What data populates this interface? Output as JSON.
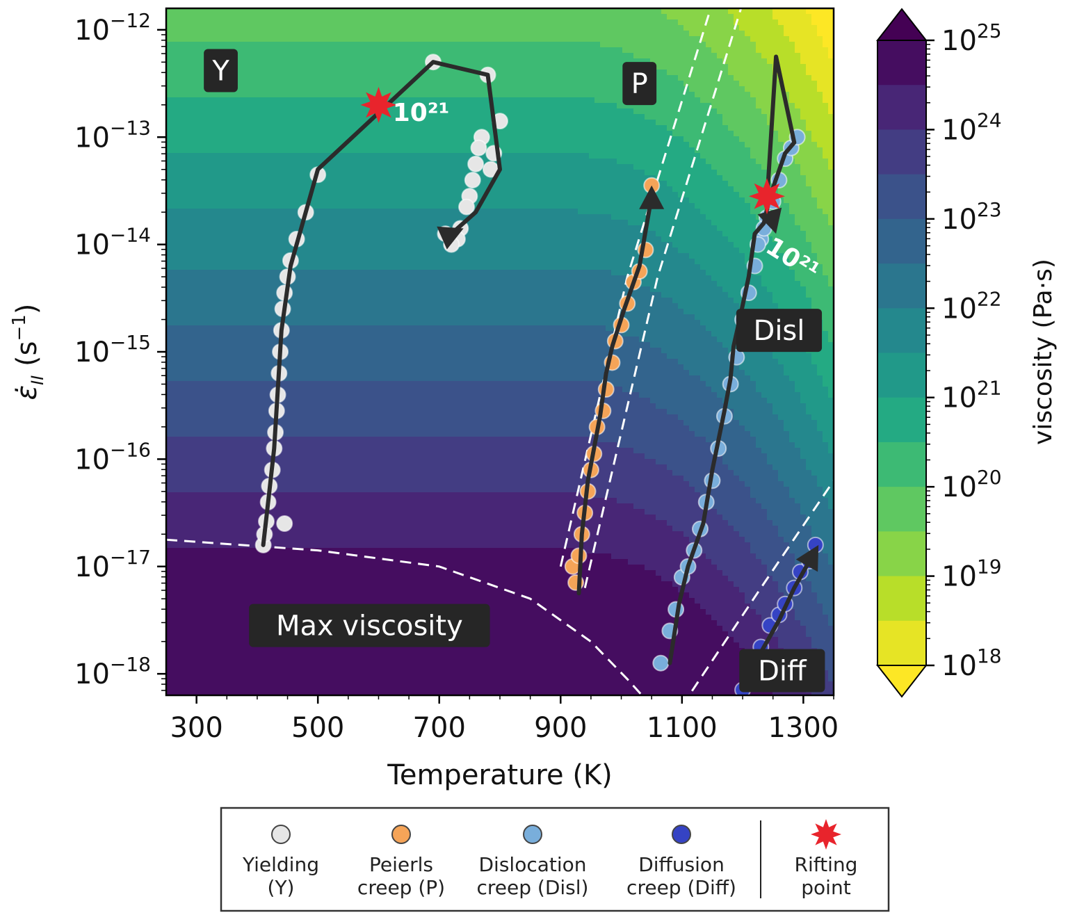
{
  "chart_data": {
    "type": "scatter",
    "xlabel": "Temperature (K)",
    "ylabel": "ε̇",
    "ylabel_subscript": "II",
    "ylabel_unit_open": " (s",
    "ylabel_unit_exp": "−1",
    "ylabel_unit_close": ")",
    "xlim": [
      250,
      1350
    ],
    "ylim_log10": [
      -18.2,
      -11.8
    ],
    "y_scale": "log",
    "x_ticks": [
      300,
      500,
      700,
      900,
      1100,
      1300
    ],
    "x_tick_labels": [
      "300",
      "500",
      "700",
      "900",
      "1100",
      "1300"
    ],
    "y_ticks_log10": [
      -18,
      -17,
      -16,
      -15,
      -14,
      -13,
      -12
    ],
    "y_tick_labels": [
      {
        "base": "10",
        "exp": "−18"
      },
      {
        "base": "10",
        "exp": "−17"
      },
      {
        "base": "10",
        "exp": "−16"
      },
      {
        "base": "10",
        "exp": "−15"
      },
      {
        "base": "10",
        "exp": "−14"
      },
      {
        "base": "10",
        "exp": "−13"
      },
      {
        "base": "10",
        "exp": "−12"
      }
    ],
    "colorbar": {
      "label": "viscosity (Pa·s)",
      "scale": "log",
      "range_log10": [
        18,
        25
      ],
      "colormap": "viridis_r",
      "ticks": [
        {
          "base": "10",
          "exp": "25"
        },
        {
          "base": "10",
          "exp": "24"
        },
        {
          "base": "10",
          "exp": "23"
        },
        {
          "base": "10",
          "exp": "22"
        },
        {
          "base": "10",
          "exp": "21"
        },
        {
          "base": "10",
          "exp": "20"
        },
        {
          "base": "10",
          "exp": "19"
        },
        {
          "base": "10",
          "exp": "18"
        }
      ],
      "extend": "both"
    },
    "region_labels": [
      {
        "text": "Y",
        "x": 340,
        "y_log10": -12.38
      },
      {
        "text": "P",
        "x": 1030,
        "y_log10": -12.5
      },
      {
        "text": "Disl",
        "x": 1260,
        "y_log10": -14.8
      },
      {
        "text": "Diff",
        "x": 1265,
        "y_log10": -17.97
      },
      {
        "text": "Max viscosity",
        "x": 585,
        "y_log10": -17.55
      }
    ],
    "contour_labels": [
      {
        "text": "10²¹",
        "x": 670,
        "y_log10": -12.85
      },
      {
        "text": "10²¹",
        "x": 1275,
        "y_log10": -14.2
      }
    ],
    "series": [
      {
        "name": "Yielding (Y)",
        "color": "#e6e6e6",
        "points": [
          [
            410,
            -16.8
          ],
          [
            412,
            -16.7
          ],
          [
            415,
            -16.58
          ],
          [
            418,
            -16.4
          ],
          [
            420,
            -16.25
          ],
          [
            425,
            -16.1
          ],
          [
            428,
            -15.9
          ],
          [
            430,
            -15.75
          ],
          [
            432,
            -15.55
          ],
          [
            434,
            -15.4
          ],
          [
            436,
            -15.2
          ],
          [
            438,
            -15.0
          ],
          [
            440,
            -14.8
          ],
          [
            442,
            -14.6
          ],
          [
            445,
            -14.45
          ],
          [
            450,
            -14.3
          ],
          [
            455,
            -14.15
          ],
          [
            465,
            -13.95
          ],
          [
            480,
            -13.7
          ],
          [
            500,
            -13.35
          ],
          [
            690,
            -12.3
          ],
          [
            780,
            -12.42
          ],
          [
            800,
            -12.85
          ],
          [
            790,
            -13.15
          ],
          [
            785,
            -13.3
          ],
          [
            770,
            -13.0
          ],
          [
            765,
            -13.1
          ],
          [
            760,
            -13.25
          ],
          [
            755,
            -13.4
          ],
          [
            750,
            -13.55
          ],
          [
            745,
            -13.65
          ],
          [
            735,
            -13.85
          ],
          [
            730,
            -13.95
          ],
          [
            720,
            -14.0
          ],
          [
            710,
            -13.9
          ],
          [
            445,
            -16.6
          ]
        ],
        "path": [
          [
            410,
            -16.8
          ],
          [
            420,
            -16.3
          ],
          [
            428,
            -15.9
          ],
          [
            440,
            -14.8
          ],
          [
            455,
            -14.2
          ],
          [
            480,
            -13.7
          ],
          [
            500,
            -13.3
          ],
          [
            690,
            -12.3
          ],
          [
            780,
            -12.42
          ],
          [
            800,
            -13.3
          ],
          [
            760,
            -13.7
          ],
          [
            720,
            -13.9
          ]
        ],
        "arrow_to": [
          740,
          -13.85
        ]
      },
      {
        "name": "Peierls creep (P)",
        "color": "#f5a458",
        "points": [
          [
            920,
            -17.0
          ],
          [
            925,
            -17.15
          ],
          [
            930,
            -16.9
          ],
          [
            935,
            -16.7
          ],
          [
            940,
            -16.5
          ],
          [
            945,
            -16.3
          ],
          [
            950,
            -16.1
          ],
          [
            955,
            -15.95
          ],
          [
            960,
            -15.7
          ],
          [
            970,
            -15.55
          ],
          [
            975,
            -15.35
          ],
          [
            985,
            -15.1
          ],
          [
            990,
            -14.9
          ],
          [
            1000,
            -14.75
          ],
          [
            1010,
            -14.55
          ],
          [
            1020,
            -14.35
          ],
          [
            1030,
            -14.25
          ],
          [
            1040,
            -14.05
          ],
          [
            1050,
            -13.45
          ]
        ],
        "path": [
          [
            930,
            -17.25
          ],
          [
            935,
            -16.7
          ],
          [
            945,
            -16.2
          ],
          [
            955,
            -15.9
          ],
          [
            965,
            -15.6
          ],
          [
            975,
            -15.2
          ],
          [
            985,
            -14.95
          ],
          [
            1005,
            -14.6
          ],
          [
            1030,
            -14.2
          ],
          [
            1050,
            -13.55
          ]
        ],
        "arrow_to": [
          1050,
          -13.45
        ]
      },
      {
        "name": "Dislocation creep (Disl)",
        "color": "#79aedb",
        "points": [
          [
            1065,
            -17.9
          ],
          [
            1080,
            -17.6
          ],
          [
            1090,
            -17.4
          ],
          [
            1100,
            -17.1
          ],
          [
            1110,
            -17.0
          ],
          [
            1120,
            -16.85
          ],
          [
            1130,
            -16.65
          ],
          [
            1140,
            -16.4
          ],
          [
            1150,
            -16.2
          ],
          [
            1160,
            -15.9
          ],
          [
            1170,
            -15.6
          ],
          [
            1180,
            -15.3
          ],
          [
            1190,
            -15.05
          ],
          [
            1200,
            -14.7
          ],
          [
            1210,
            -14.45
          ],
          [
            1220,
            -14.2
          ],
          [
            1230,
            -13.95
          ],
          [
            1240,
            -13.75
          ],
          [
            1250,
            -13.6
          ],
          [
            1260,
            -13.4
          ],
          [
            1270,
            -13.2
          ],
          [
            1280,
            -13.1
          ],
          [
            1290,
            -13.0
          ],
          [
            1235,
            -13.85
          ],
          [
            1225,
            -14.0
          ]
        ],
        "path": [
          [
            1080,
            -17.9
          ],
          [
            1095,
            -17.35
          ],
          [
            1110,
            -17.0
          ],
          [
            1135,
            -16.6
          ],
          [
            1150,
            -16.1
          ],
          [
            1170,
            -15.55
          ],
          [
            1180,
            -15.25
          ],
          [
            1185,
            -14.95
          ],
          [
            1195,
            -14.7
          ],
          [
            1210,
            -14.3
          ],
          [
            1220,
            -13.9
          ],
          [
            1235,
            -13.8
          ],
          [
            1245,
            -13.55
          ],
          [
            1270,
            -13.15
          ],
          [
            1285,
            -13.05
          ],
          [
            1255,
            -12.25
          ],
          [
            1240,
            -13.6
          ]
        ],
        "arrow_to": [
          1255,
          -13.9
        ]
      },
      {
        "name": "Diffusion creep (Diff)",
        "color": "#3543c4",
        "points": [
          [
            1200,
            -18.15
          ],
          [
            1215,
            -17.9
          ],
          [
            1230,
            -17.75
          ],
          [
            1245,
            -17.55
          ],
          [
            1260,
            -17.45
          ],
          [
            1270,
            -17.35
          ],
          [
            1285,
            -17.2
          ],
          [
            1295,
            -17.05
          ],
          [
            1310,
            -16.95
          ],
          [
            1320,
            -16.8
          ]
        ],
        "path": [
          [
            1200,
            -18.05
          ],
          [
            1230,
            -17.8
          ],
          [
            1260,
            -17.5
          ],
          [
            1285,
            -17.2
          ],
          [
            1310,
            -16.95
          ]
        ],
        "arrow_to": [
          1325,
          -16.8
        ]
      }
    ],
    "rifting_points": [
      {
        "x": 600,
        "y_log10": -12.7
      },
      {
        "x": 1240,
        "y_log10": -13.55
      }
    ],
    "legend": {
      "placement": "bottom",
      "entries": [
        {
          "line1": "Yielding",
          "line2": "(Y)",
          "color": "#e6e6e6",
          "marker": "circle"
        },
        {
          "line1": "Peierls",
          "line2": "creep (P)",
          "color": "#f5a458",
          "marker": "circle"
        },
        {
          "line1": "Dislocation",
          "line2": "creep (Disl)",
          "color": "#79aedb",
          "marker": "circle"
        },
        {
          "line1": "Diffusion",
          "line2": "creep (Diff)",
          "color": "#3543c4",
          "marker": "circle"
        },
        {
          "line1": "Rifting",
          "line2": "point",
          "color": "#e8242c",
          "marker": "star"
        }
      ]
    }
  }
}
